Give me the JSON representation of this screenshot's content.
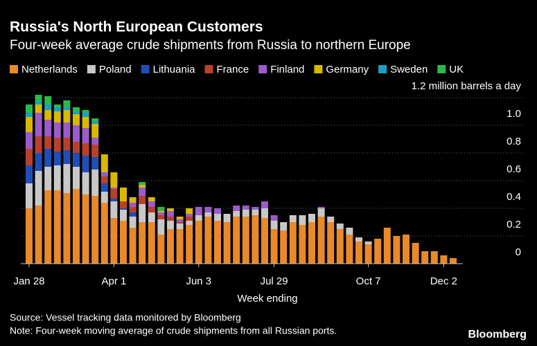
{
  "chart_data": {
    "type": "stacked_bar",
    "title": "Russia's North European Customers",
    "subtitle": "Four-week average crude shipments from Russia to northern Europe",
    "x_label": "Week ending",
    "source": "Source: Vessel tracking data monitored by Bloomberg",
    "note": "Note: Four-week moving average of crude shipments from all Russian ports.",
    "brand": "Bloomberg",
    "categories": [
      "Jan 28",
      null,
      null,
      null,
      null,
      null,
      null,
      null,
      null,
      "Apr 1",
      null,
      null,
      null,
      null,
      null,
      null,
      null,
      null,
      "Jun 3",
      null,
      null,
      null,
      null,
      null,
      null,
      null,
      "Jul 29",
      null,
      null,
      null,
      null,
      null,
      null,
      null,
      null,
      null,
      "Oct 7",
      null,
      null,
      null,
      null,
      null,
      null,
      null,
      "Dec 2",
      null
    ],
    "series": [
      {
        "name": "Netherlands",
        "color": "#e8892b",
        "values": [
          0.4,
          0.42,
          0.53,
          0.53,
          0.51,
          0.54,
          0.5,
          0.49,
          0.44,
          0.33,
          0.31,
          0.26,
          0.3,
          0.3,
          0.21,
          0.25,
          0.25,
          0.28,
          0.31,
          0.34,
          0.31,
          0.3,
          0.34,
          0.34,
          0.35,
          0.33,
          0.25,
          0.24,
          0.3,
          0.28,
          0.3,
          0.34,
          0.3,
          0.25,
          0.21,
          0.16,
          0.14,
          0.18,
          0.26,
          0.2,
          0.21,
          0.15,
          0.09,
          0.09,
          0.06,
          0.04
        ]
      },
      {
        "name": "Poland",
        "color": "#c8c8c8",
        "values": [
          0.18,
          0.25,
          0.17,
          0.18,
          0.21,
          0.16,
          0.16,
          0.19,
          0.08,
          0.12,
          0.08,
          0.08,
          0.13,
          0.07,
          0.11,
          0.06,
          0.04,
          0.03,
          0.04,
          0.03,
          0.05,
          0.06,
          0.04,
          0.05,
          0.04,
          0.07,
          0.06,
          0.06,
          0.05,
          0.07,
          0.06,
          0.06,
          0.04,
          0.04,
          0.05,
          0.03,
          0.02,
          0,
          0,
          0,
          0,
          0,
          0,
          0,
          0,
          0
        ]
      },
      {
        "name": "Lithuania",
        "color": "#1f4fb5",
        "values": [
          0.13,
          0.13,
          0.13,
          0.1,
          0.1,
          0.1,
          0.12,
          0.09,
          0.06,
          0.02,
          0.01,
          0.03,
          0,
          0,
          0,
          0,
          0,
          0,
          0,
          0,
          0,
          0,
          0,
          0,
          0,
          0,
          0,
          0,
          0,
          0,
          0,
          0,
          0,
          0,
          0,
          0,
          0,
          0,
          0,
          0,
          0,
          0,
          0,
          0,
          0,
          0
        ]
      },
      {
        "name": "France",
        "color": "#b9412b",
        "values": [
          0.12,
          0.12,
          0.09,
          0.1,
          0.09,
          0.08,
          0.09,
          0.09,
          0.05,
          0.07,
          0.05,
          0.04,
          0.06,
          0.04,
          0.03,
          0.03,
          0.01,
          0.03,
          0,
          0,
          0,
          0,
          0,
          0,
          0,
          0,
          0,
          0,
          0,
          0,
          0,
          0,
          0,
          0,
          0,
          0,
          0,
          0,
          0,
          0,
          0,
          0,
          0,
          0,
          0,
          0
        ]
      },
      {
        "name": "Finland",
        "color": "#9b5cc9",
        "values": [
          0.12,
          0.17,
          0.12,
          0.11,
          0.11,
          0.12,
          0.11,
          0.05,
          0.03,
          0.01,
          0,
          0.03,
          0.06,
          0.04,
          0.02,
          0.04,
          0.02,
          0.02,
          0.06,
          0.04,
          0.04,
          0,
          0.04,
          0.03,
          0.02,
          0.05,
          0.04,
          0,
          0,
          0,
          0,
          0.01,
          0,
          0,
          0,
          0,
          0,
          0,
          0,
          0,
          0,
          0,
          0,
          0,
          0,
          0
        ]
      },
      {
        "name": "Germany",
        "color": "#d9b800",
        "values": [
          0.11,
          0.06,
          0.07,
          0.08,
          0.09,
          0.08,
          0.08,
          0.1,
          0.13,
          0.11,
          0.1,
          0.04,
          0.02,
          0.03,
          0.01,
          0.02,
          0.02,
          0.04,
          0,
          0,
          0,
          0,
          0,
          0,
          0,
          0,
          0,
          0,
          0,
          0,
          0,
          0,
          0,
          0,
          0,
          0,
          0,
          0,
          0,
          0,
          0,
          0,
          0,
          0,
          0,
          0
        ]
      },
      {
        "name": "Sweden",
        "color": "#1aa0c0",
        "values": [
          0.03,
          0.02,
          0.04,
          0.03,
          0.02,
          0.02,
          0.03,
          0.02,
          0,
          0,
          0,
          0,
          0,
          0,
          0,
          0,
          0,
          0,
          0,
          0,
          0,
          0,
          0,
          0,
          0,
          0,
          0,
          0,
          0,
          0,
          0,
          0,
          0,
          0,
          0,
          0,
          0,
          0,
          0,
          0,
          0,
          0,
          0,
          0,
          0,
          0
        ]
      },
      {
        "name": "UK",
        "color": "#2db84a",
        "values": [
          0.06,
          0.05,
          0.06,
          0.02,
          0.05,
          0.03,
          0.02,
          0.02,
          0,
          0,
          0,
          0,
          0.02,
          0,
          0.03,
          0,
          0,
          0,
          0,
          0,
          0,
          0,
          0,
          0,
          0,
          0,
          0,
          0,
          0,
          0,
          0,
          0,
          0,
          0,
          0,
          0,
          0,
          0,
          0,
          0,
          0,
          0,
          0,
          0,
          0,
          0
        ]
      }
    ],
    "ylim": [
      0,
      1.2
    ],
    "yticks": [
      0,
      0.2,
      0.4,
      0.6,
      0.8,
      {
        "value": 1,
        "label": "1.0"
      },
      {
        "value": 1.2,
        "label": "1.2 million barrels a day"
      }
    ],
    "grid": true
  }
}
